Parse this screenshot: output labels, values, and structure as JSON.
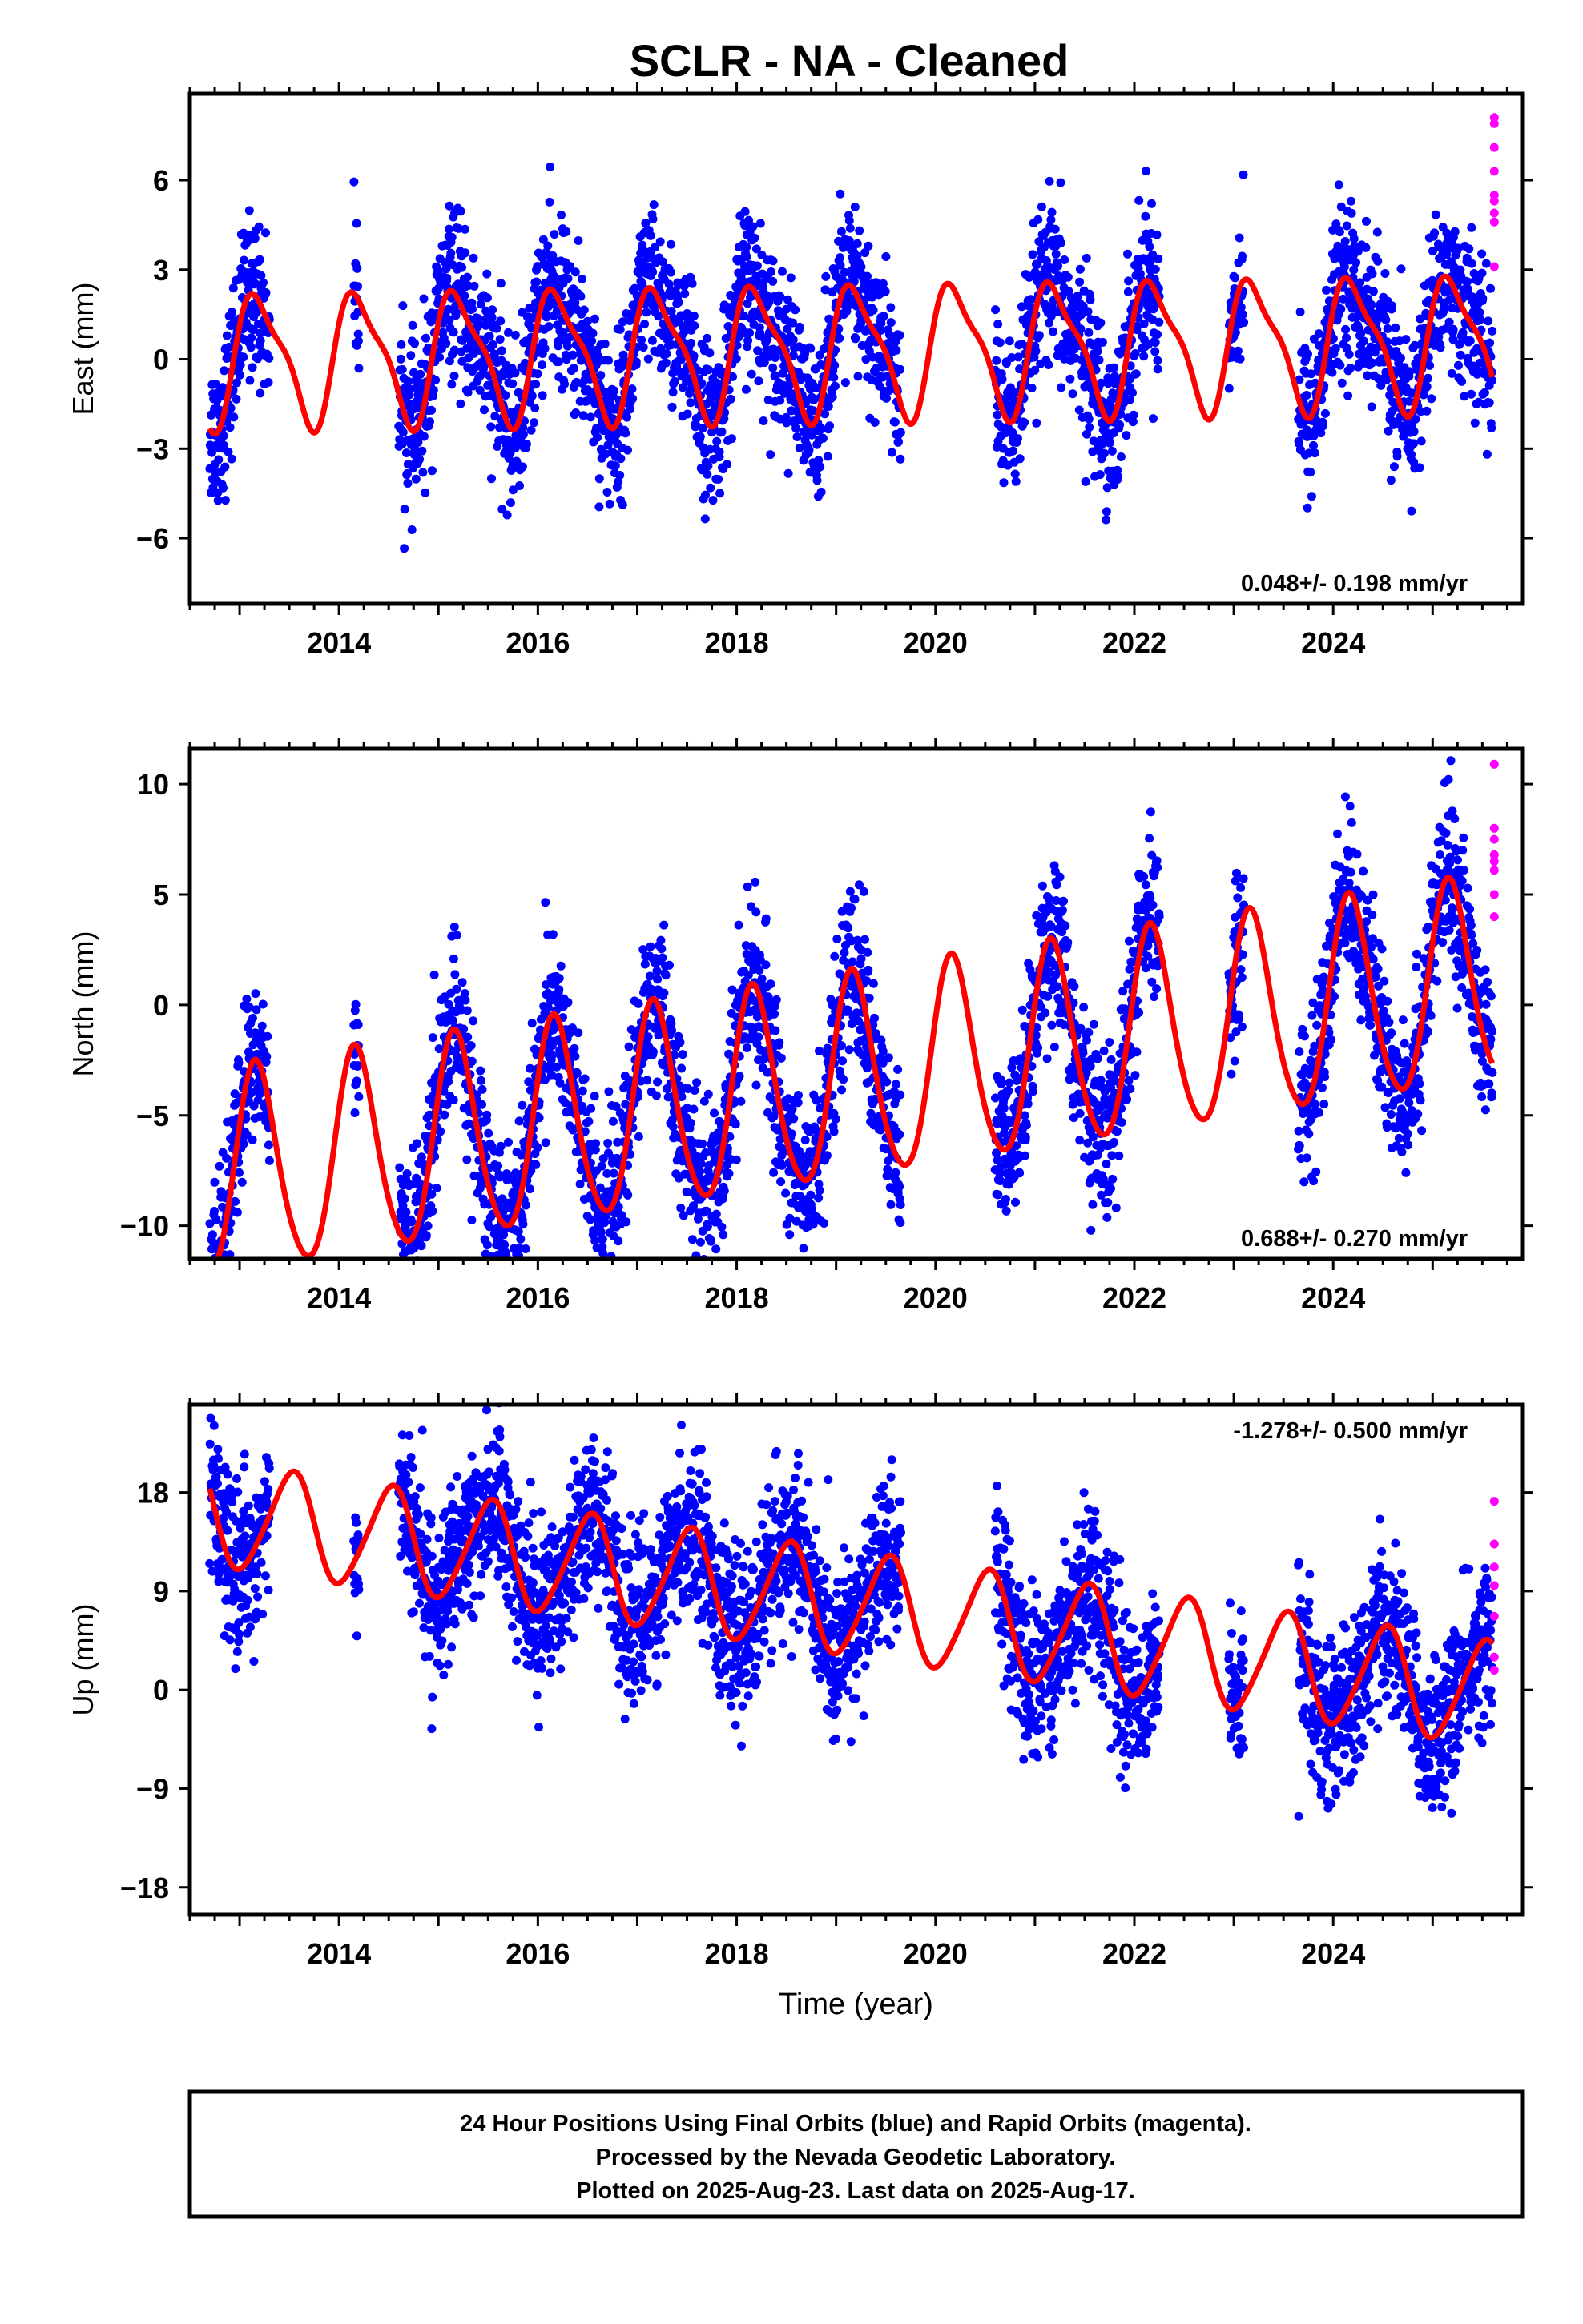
{
  "title": "SCLR  - NA - Cleaned",
  "colors": {
    "final": "#0000ff",
    "rapid": "#ff00ff",
    "model": "#ff0000"
  },
  "chart_data": [
    {
      "type": "scatter",
      "panel": "east",
      "ylabel": "East (mm)",
      "xlabel": "",
      "xlim": [
        2012.5,
        2025.9
      ],
      "ylim": [
        -8.2,
        8.9
      ],
      "yticks": [
        -6,
        -3,
        0,
        3,
        6
      ],
      "ytick_labels": [
        "−6",
        "−3",
        "0",
        "3",
        "6"
      ],
      "xticks": [
        2014,
        2016,
        2018,
        2020,
        2022,
        2024
      ],
      "xtick_labels": [
        "2014",
        "2016",
        "2018",
        "2020",
        "2022",
        "2024"
      ],
      "rate_label": "0.048+/- 0.198 mm/yr",
      "rate_position": "bottom-right",
      "model": {
        "rate": 0.048,
        "offset": 0.3,
        "annual_amp": 2.1,
        "annual_phase": 0.3,
        "semi_amp": 0.6,
        "semi_phase": 1.0
      },
      "segments": [
        [
          2012.7,
          2013.3
        ],
        [
          2014.15,
          2014.2
        ],
        [
          2014.6,
          2019.65
        ],
        [
          2020.6,
          2022.25
        ],
        [
          2022.95,
          2023.1
        ],
        [
          2023.65,
          2025.6
        ]
      ],
      "noise": 1.3,
      "rapid": [
        [
          2025.62,
          8.1
        ],
        [
          2025.62,
          7.9
        ],
        [
          2025.62,
          7.1
        ],
        [
          2025.62,
          6.3
        ],
        [
          2025.62,
          5.5
        ],
        [
          2025.62,
          5.3
        ],
        [
          2025.62,
          4.9
        ],
        [
          2025.62,
          4.6
        ],
        [
          2025.62,
          3.1
        ]
      ]
    },
    {
      "type": "scatter",
      "panel": "north",
      "ylabel": "North (mm)",
      "xlabel": "",
      "xlim": [
        2012.5,
        2025.9
      ],
      "ylim": [
        -11.5,
        11.6
      ],
      "yticks": [
        -10,
        -5,
        0,
        5,
        10
      ],
      "ytick_labels": [
        "−10",
        "−5",
        "0",
        "5",
        "10"
      ],
      "xticks": [
        2014,
        2016,
        2018,
        2020,
        2022,
        2024
      ],
      "xtick_labels": [
        "2014",
        "2016",
        "2018",
        "2020",
        "2022",
        "2024"
      ],
      "rate_label": "0.688+/- 0.270 mm/yr",
      "rate_position": "bottom-right",
      "model": {
        "rate": 0.688,
        "offset": -3.5,
        "annual_amp": 4.6,
        "annual_phase": 0.5,
        "semi_amp": 0.5,
        "semi_phase": 0.0
      },
      "segments": [
        [
          2012.7,
          2013.3
        ],
        [
          2014.15,
          2014.2
        ],
        [
          2014.6,
          2019.65
        ],
        [
          2020.6,
          2022.25
        ],
        [
          2022.95,
          2023.1
        ],
        [
          2023.65,
          2025.6
        ]
      ],
      "noise": 1.8,
      "rapid": [
        [
          2025.62,
          10.9
        ],
        [
          2025.62,
          8.0
        ],
        [
          2025.62,
          7.5
        ],
        [
          2025.62,
          6.8
        ],
        [
          2025.62,
          6.5
        ],
        [
          2025.62,
          6.1
        ],
        [
          2025.62,
          5.0
        ],
        [
          2025.62,
          4.0
        ]
      ]
    },
    {
      "type": "scatter",
      "panel": "up",
      "ylabel": "Up (mm)",
      "xlabel": "Time (year)",
      "xlim": [
        2012.5,
        2025.9
      ],
      "ylim": [
        -20.5,
        26.0
      ],
      "yticks": [
        -18,
        -9,
        0,
        9,
        18
      ],
      "ytick_labels": [
        "−18",
        "−9",
        "0",
        "9",
        "18"
      ],
      "xticks": [
        2014,
        2016,
        2018,
        2020,
        2022,
        2024
      ],
      "xtick_labels": [
        "2014",
        "2016",
        "2018",
        "2020",
        "2022",
        "2024"
      ],
      "rate_label": "-1.278+/- 0.500 mm/yr",
      "rate_position": "top-right",
      "model": {
        "rate": -1.278,
        "offset": 8.0,
        "annual_amp": 4.7,
        "annual_phase": 4.6,
        "semi_amp": 0.6,
        "semi_phase": 0.0
      },
      "segments": [
        [
          2012.7,
          2013.3
        ],
        [
          2014.15,
          2014.2
        ],
        [
          2014.6,
          2019.65
        ],
        [
          2020.6,
          2022.25
        ],
        [
          2022.95,
          2023.1
        ],
        [
          2023.65,
          2025.6
        ]
      ],
      "noise": 3.6,
      "rapid": [
        [
          2025.62,
          17.2
        ],
        [
          2025.62,
          13.3
        ],
        [
          2025.62,
          11.2
        ],
        [
          2025.62,
          9.5
        ],
        [
          2025.62,
          6.7
        ],
        [
          2025.62,
          3.0
        ],
        [
          2025.62,
          1.8
        ]
      ]
    }
  ],
  "footer": {
    "line1": "24 Hour Positions Using Final Orbits (blue) and Rapid Orbits (magenta).",
    "line2": "Processed by the Nevada Geodetic Laboratory.",
    "line3": "Plotted on 2025-Aug-23. Last data on 2025-Aug-17."
  }
}
